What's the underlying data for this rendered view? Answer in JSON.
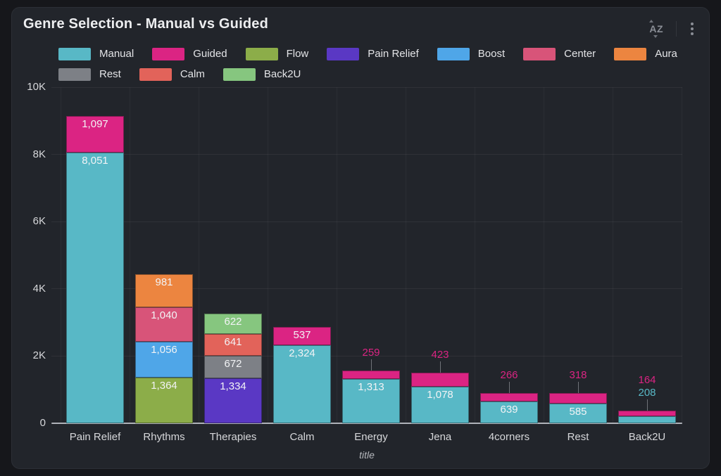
{
  "panel": {
    "title": "Genre Selection - Manual vs Guided",
    "icons": {
      "sort_label": "AZ",
      "kebab": "kebab-menu"
    }
  },
  "colors": {
    "outer_background": "#16171B",
    "panel_background": "#22252B",
    "axis_text": "#D6D7DA",
    "baseline": "#C8CBD2"
  },
  "chart_data": {
    "type": "bar",
    "stacked": true,
    "title": "Genre Selection - Manual vs Guided",
    "xlabel": "title",
    "ylabel": "",
    "ylim": [
      0,
      10000
    ],
    "yticks": [
      "0",
      "2K",
      "4K",
      "6K",
      "8K",
      "10K"
    ],
    "grid": "on",
    "legend_position": "top",
    "categories": [
      "Pain Relief",
      "Rhythms",
      "Therapies",
      "Calm",
      "Energy",
      "Jena",
      "4corners",
      "Rest",
      "Back2U"
    ],
    "series": [
      {
        "name": "Manual",
        "color": "#58B8C6",
        "values": [
          8051,
          null,
          null,
          2324,
          1313,
          1078,
          639,
          585,
          208
        ]
      },
      {
        "name": "Guided",
        "color": "#DB2483",
        "values": [
          1097,
          null,
          null,
          537,
          259,
          423,
          266,
          318,
          164
        ]
      },
      {
        "name": "Flow",
        "color": "#8CAD49",
        "values": [
          null,
          1364,
          null,
          null,
          null,
          null,
          null,
          null,
          null
        ]
      },
      {
        "name": "Pain Relief",
        "color": "#5A38C4",
        "values": [
          null,
          null,
          1334,
          null,
          null,
          null,
          null,
          null,
          null
        ]
      },
      {
        "name": "Boost",
        "color": "#4FA6E8",
        "values": [
          null,
          1056,
          null,
          null,
          null,
          null,
          null,
          null,
          null
        ]
      },
      {
        "name": "Center",
        "color": "#D85479",
        "values": [
          null,
          1040,
          null,
          null,
          null,
          null,
          null,
          null,
          null
        ]
      },
      {
        "name": "Aura",
        "color": "#EC8540",
        "values": [
          null,
          981,
          null,
          null,
          null,
          null,
          null,
          null,
          null
        ]
      },
      {
        "name": "Rest",
        "color": "#7D8086",
        "values": [
          null,
          null,
          672,
          null,
          null,
          null,
          null,
          null,
          null
        ]
      },
      {
        "name": "Calm",
        "color": "#E2635A",
        "values": [
          null,
          null,
          641,
          null,
          null,
          null,
          null,
          null,
          null
        ]
      },
      {
        "name": "Back2U",
        "color": "#86C67F",
        "values": [
          null,
          null,
          622,
          null,
          null,
          null,
          null,
          null,
          null
        ]
      }
    ],
    "stack_order": {
      "Pain Relief": [
        "Manual",
        "Guided"
      ],
      "Rhythms": [
        "Flow",
        "Boost",
        "Center",
        "Aura"
      ],
      "Therapies": [
        "Pain Relief",
        "Rest",
        "Calm",
        "Back2U"
      ],
      "Calm": [
        "Manual",
        "Guided"
      ],
      "Energy": [
        "Manual",
        "Guided"
      ],
      "Jena": [
        "Manual",
        "Guided"
      ],
      "4corners": [
        "Manual",
        "Guided"
      ],
      "Rest": [
        "Manual",
        "Guided"
      ],
      "Back2U": [
        "Manual",
        "Guided"
      ]
    },
    "legend": [
      "Manual",
      "Guided",
      "Flow",
      "Pain Relief",
      "Boost",
      "Center",
      "Aura",
      "Rest",
      "Calm",
      "Back2U"
    ]
  }
}
